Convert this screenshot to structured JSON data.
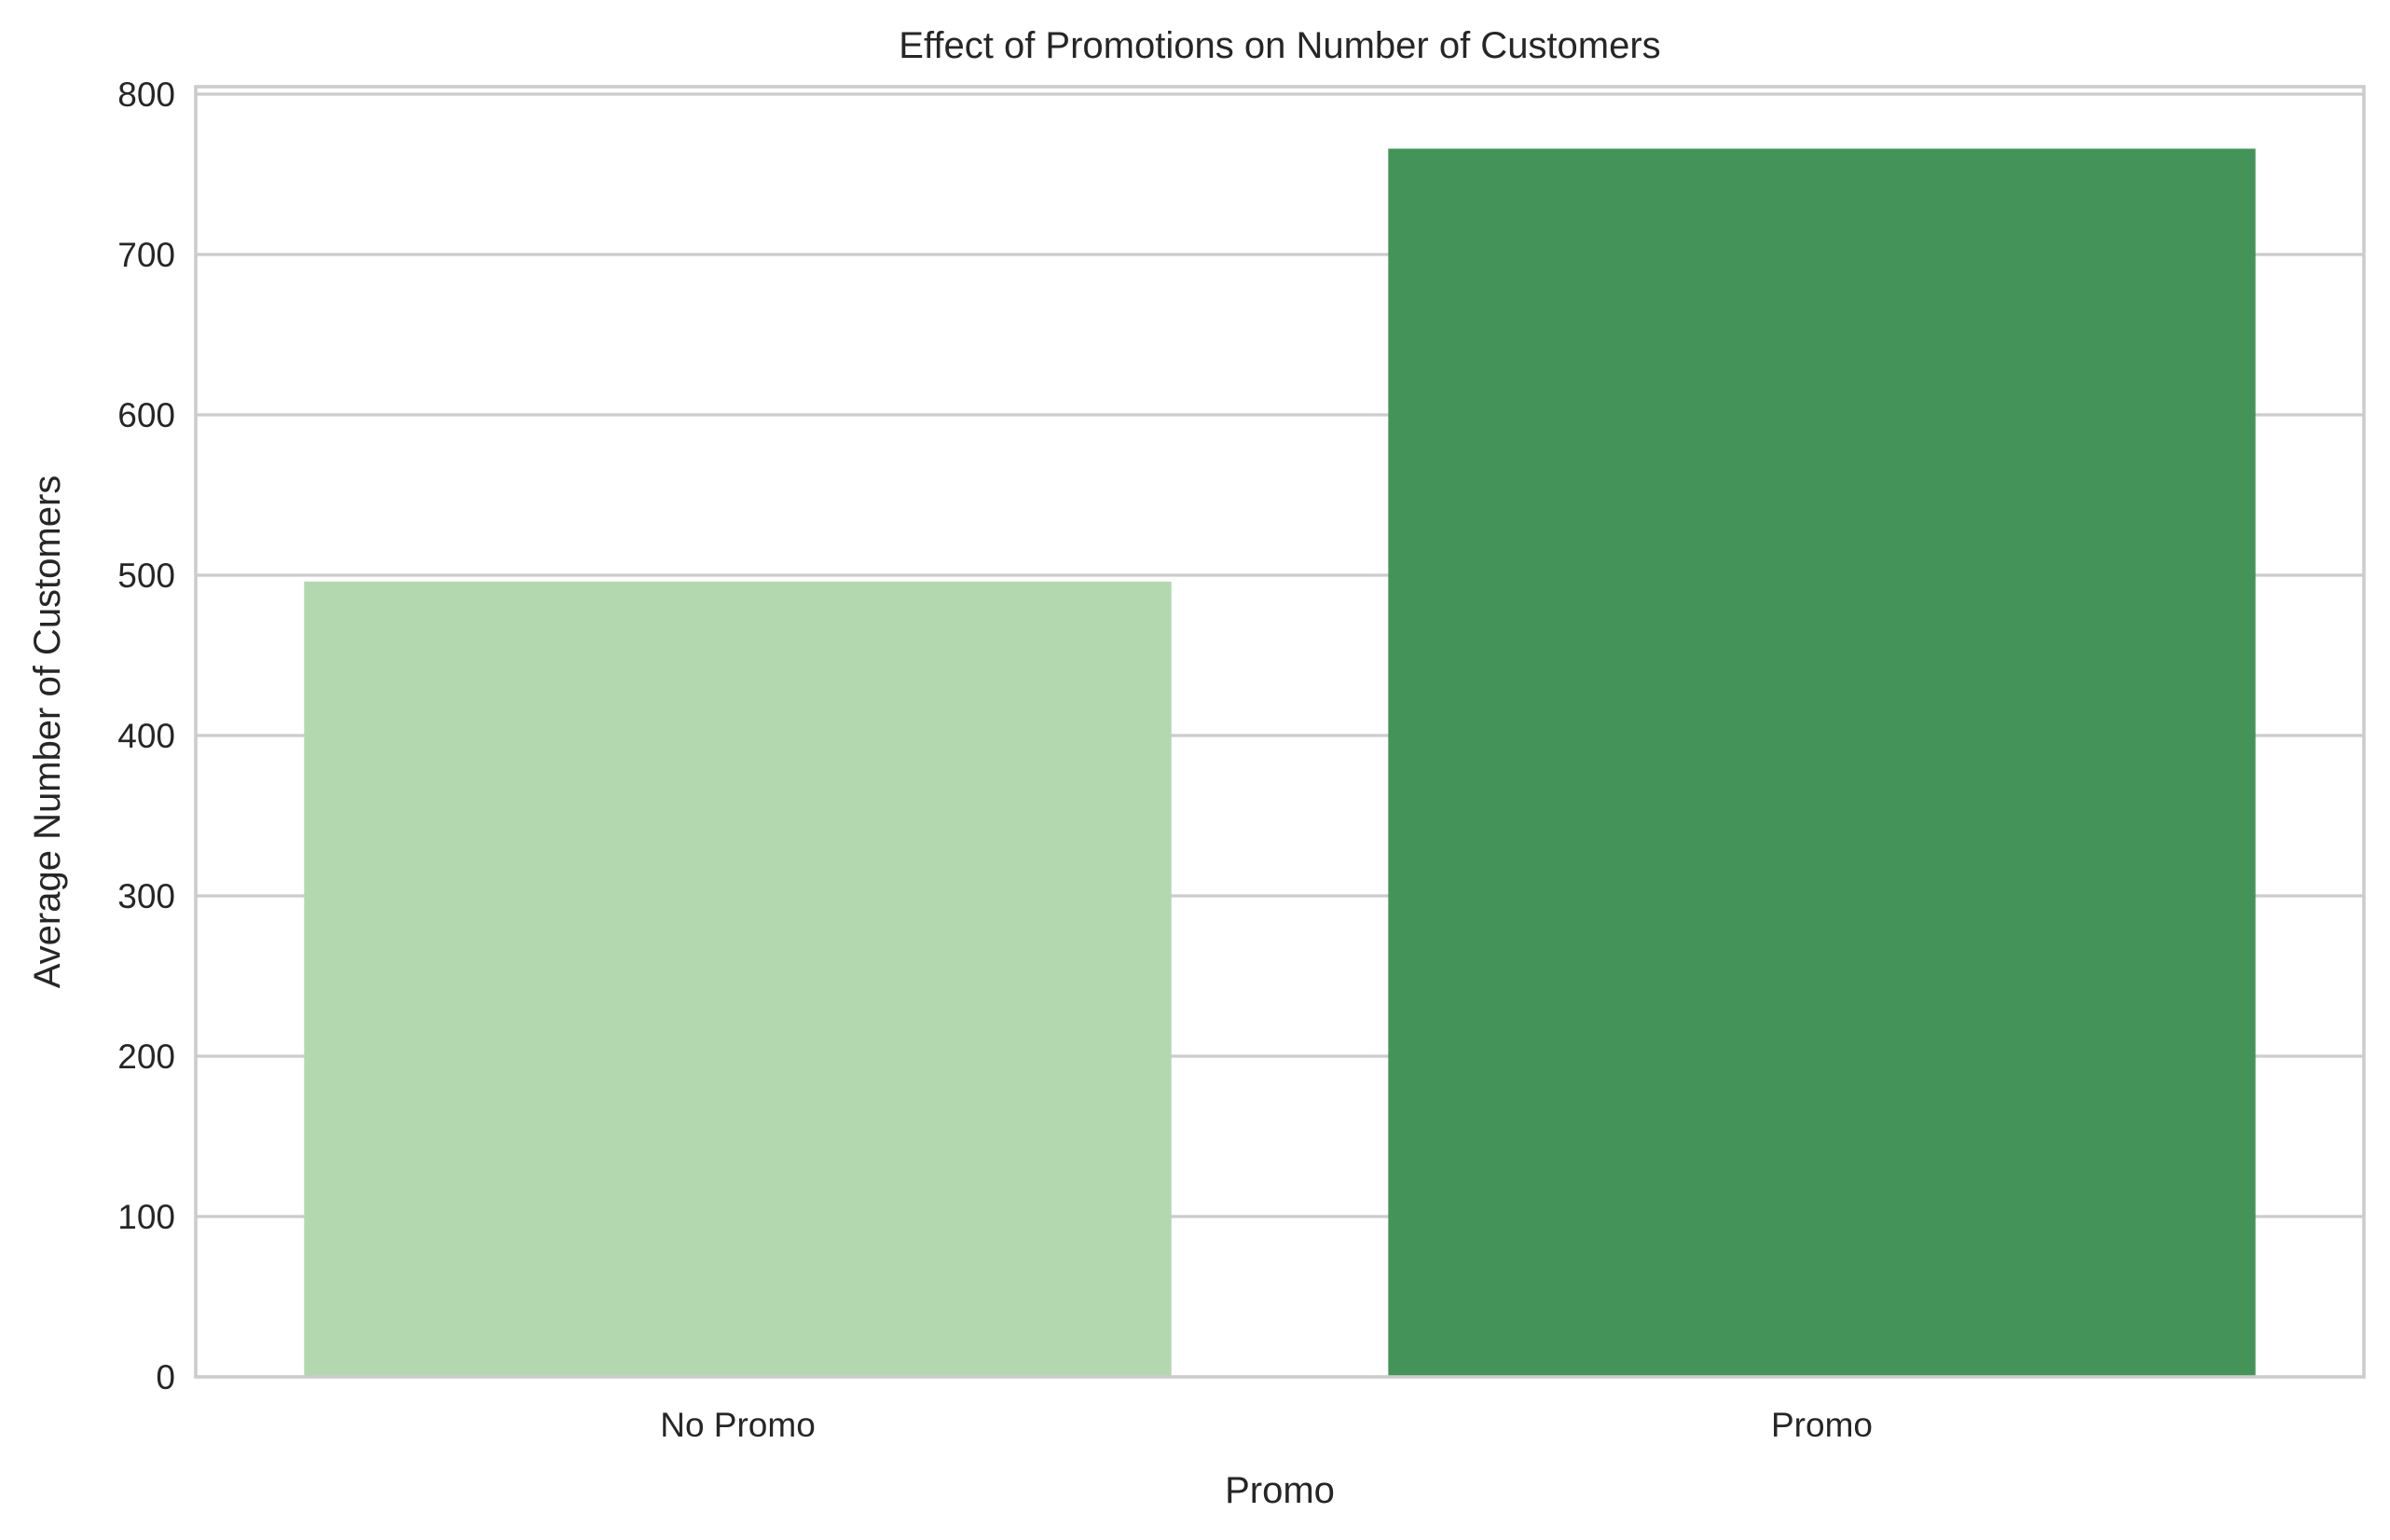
{
  "chart_data": {
    "type": "bar",
    "title": "Effect of Promotions on Number of Customers",
    "xlabel": "Promo",
    "ylabel": "Average Number of Customers",
    "categories": [
      "No Promo",
      "Promo"
    ],
    "values": [
      496,
      766
    ],
    "colors": [
      "#b3d8b0",
      "#44945a"
    ],
    "ylim": [
      0,
      800
    ],
    "yticks": [
      0,
      100,
      200,
      300,
      400,
      500,
      600,
      700,
      800
    ],
    "grid": "horizontal",
    "legend": "none"
  }
}
